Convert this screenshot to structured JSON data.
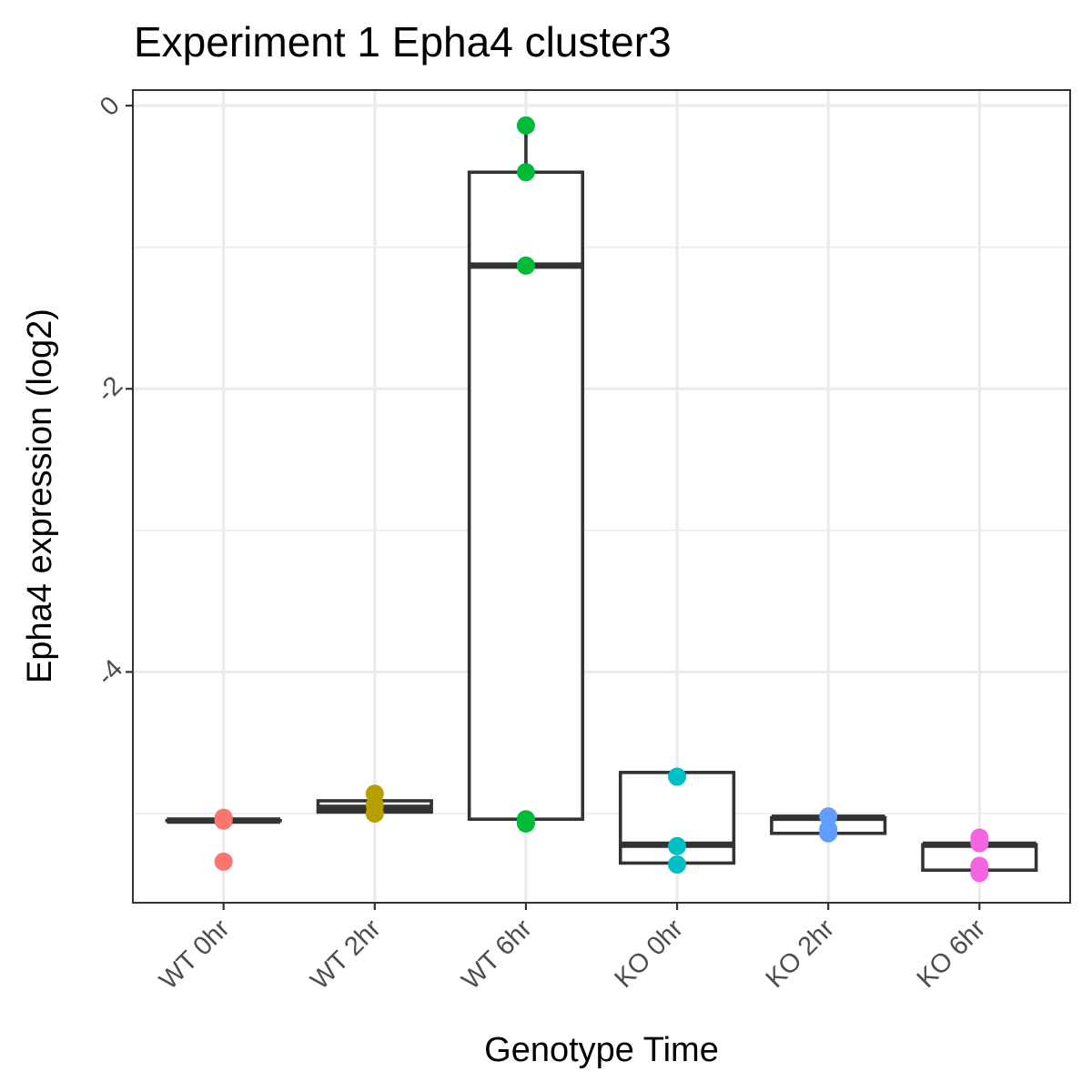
{
  "chart_data": {
    "type": "box",
    "title": "Experiment 1 Epha4 cluster3",
    "xlabel": "Genotype Time",
    "ylabel": "Epha4 expression (log2)",
    "ylim": [
      -5.63,
      0.11
    ],
    "yticks": [
      0,
      -2,
      -4
    ],
    "yticks_labels": [
      "0",
      "-2",
      "-4"
    ],
    "y_minor_ticks": [
      -1,
      -3,
      -5
    ],
    "grid": true,
    "legend": "none",
    "categories": [
      "WT 0hr",
      "WT 2hr",
      "WT 6hr",
      "KO 0hr",
      "KO 2hr",
      "KO 6hr"
    ],
    "colors": [
      "#F8766D",
      "#B79F00",
      "#00BA38",
      "#00BFC4",
      "#619CFF",
      "#F564E3"
    ],
    "boxes": [
      {
        "category": "WT 0hr",
        "q1": -5.05,
        "median": -5.05,
        "q3": -5.05,
        "whisker_low": -5.05,
        "whisker_high": -5.05
      },
      {
        "category": "WT 2hr",
        "q1": -4.99,
        "median": -4.96,
        "q3": -4.91,
        "whisker_low": -4.99,
        "whisker_high": -4.91
      },
      {
        "category": "WT 6hr",
        "q1": -5.04,
        "median": -1.13,
        "q3": -0.47,
        "whisker_low": -5.04,
        "whisker_high": -0.14
      },
      {
        "category": "KO 0hr",
        "q1": -5.35,
        "median": -5.22,
        "q3": -4.71,
        "whisker_low": -5.35,
        "whisker_high": -4.71
      },
      {
        "category": "KO 2hr",
        "q1": -5.14,
        "median": -5.03,
        "q3": -5.03,
        "whisker_low": -5.14,
        "whisker_high": -5.03
      },
      {
        "category": "KO 6hr",
        "q1": -5.4,
        "median": -5.22,
        "q3": -5.22,
        "whisker_low": -5.4,
        "whisker_high": -5.22
      }
    ],
    "points": [
      {
        "category": "WT 0hr",
        "values": [
          -5.03,
          -5.05,
          -5.34
        ]
      },
      {
        "category": "WT 2hr",
        "values": [
          -4.86,
          -4.94,
          -5.0
        ]
      },
      {
        "category": "WT 6hr",
        "values": [
          -0.14,
          -0.47,
          -1.13,
          -5.04,
          -5.07
        ]
      },
      {
        "category": "KO 0hr",
        "values": [
          -4.74,
          -5.23,
          -5.36
        ]
      },
      {
        "category": "KO 2hr",
        "values": [
          -5.02,
          -5.11,
          -5.14
        ]
      },
      {
        "category": "KO 6hr",
        "values": [
          -5.17,
          -5.21,
          -5.37,
          -5.42
        ]
      }
    ]
  }
}
